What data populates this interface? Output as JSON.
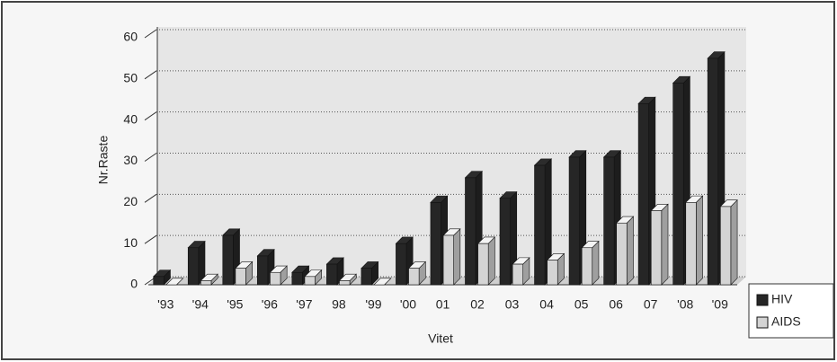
{
  "chart_data": {
    "type": "bar3d",
    "y_axis_label": "Nr.Raste",
    "x_axis_label": "Vitet",
    "categories": [
      "'93",
      "'94",
      "'95",
      "'96",
      "'97",
      "98",
      "'99",
      "'00",
      "01",
      "02",
      "03",
      "04",
      "05",
      "06",
      "07",
      "'08",
      "'09"
    ],
    "series": [
      {
        "name": "HIV",
        "color": "#262626",
        "values": [
          2,
          9,
          12,
          7,
          3,
          5,
          4,
          10,
          20,
          26,
          21,
          29,
          31,
          31,
          44,
          49,
          55
        ]
      },
      {
        "name": "AIDS",
        "color": "#d4d4d4",
        "values": [
          0,
          1,
          4,
          3,
          2,
          1,
          0,
          4,
          12,
          10,
          5,
          6,
          9,
          15,
          18,
          20,
          19
        ]
      }
    ],
    "ylim": [
      0,
      60
    ],
    "yticks": [
      0,
      10,
      20,
      30,
      40,
      50,
      60
    ],
    "grid": true,
    "legend": "right"
  }
}
